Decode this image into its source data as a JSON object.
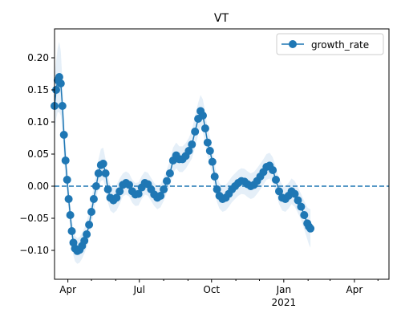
{
  "chart_data": {
    "type": "line",
    "title": "VT",
    "xlabel": "",
    "ylabel": "",
    "x_range": [
      "2020-03-15",
      "2021-05-15"
    ],
    "ylim": [
      -0.145,
      0.245
    ],
    "yticks": [
      -0.1,
      -0.05,
      0.0,
      0.05,
      0.1,
      0.15,
      0.2
    ],
    "ytick_labels": [
      "−0.10",
      "−0.05",
      "0.00",
      "0.05",
      "0.10",
      "0.15",
      "0.20"
    ],
    "xticks": [
      {
        "date": "2020-04-01",
        "label": "Apr",
        "sublabel": ""
      },
      {
        "date": "2020-07-01",
        "label": "Jul",
        "sublabel": ""
      },
      {
        "date": "2020-10-01",
        "label": "Oct",
        "sublabel": ""
      },
      {
        "date": "2021-01-01",
        "label": "Jan",
        "sublabel": "2021"
      },
      {
        "date": "2021-04-01",
        "label": "Apr",
        "sublabel": ""
      }
    ],
    "minor_xticks": [
      "2020-05-01",
      "2020-06-01",
      "2020-08-01",
      "2020-09-01",
      "2020-11-01",
      "2020-12-01",
      "2021-02-01",
      "2021-03-01",
      "2021-05-01"
    ],
    "reference_line": {
      "y": 0.0,
      "style": "dashed",
      "color": "#1f77b4"
    },
    "legend": {
      "placement": "top-right",
      "entries": [
        "growth_rate"
      ]
    },
    "grid": false,
    "series": [
      {
        "name": "growth_rate",
        "color": "#1f77b4",
        "band_color": "#e5eff8",
        "points": [
          [
            "2020-03-15",
            0.125,
            0.045
          ],
          [
            "2020-03-17",
            0.15,
            0.045
          ],
          [
            "2020-03-19",
            0.165,
            0.05
          ],
          [
            "2020-03-21",
            0.17,
            0.055
          ],
          [
            "2020-03-23",
            0.16,
            0.05
          ],
          [
            "2020-03-25",
            0.125,
            0.04
          ],
          [
            "2020-03-27",
            0.08,
            0.035
          ],
          [
            "2020-03-29",
            0.04,
            0.03
          ],
          [
            "2020-03-31",
            0.01,
            0.025
          ],
          [
            "2020-04-02",
            -0.02,
            0.022
          ],
          [
            "2020-04-04",
            -0.045,
            0.02
          ],
          [
            "2020-04-06",
            -0.07,
            0.02
          ],
          [
            "2020-04-08",
            -0.088,
            0.02
          ],
          [
            "2020-04-10",
            -0.097,
            0.02
          ],
          [
            "2020-04-13",
            -0.101,
            0.02
          ],
          [
            "2020-04-16",
            -0.099,
            0.02
          ],
          [
            "2020-04-19",
            -0.093,
            0.02
          ],
          [
            "2020-04-22",
            -0.085,
            0.02
          ],
          [
            "2020-04-25",
            -0.075,
            0.02
          ],
          [
            "2020-04-28",
            -0.06,
            0.02
          ],
          [
            "2020-05-01",
            -0.04,
            0.02
          ],
          [
            "2020-05-04",
            -0.02,
            0.02
          ],
          [
            "2020-05-07",
            0.0,
            0.02
          ],
          [
            "2020-05-10",
            0.02,
            0.022
          ],
          [
            "2020-05-13",
            0.033,
            0.025
          ],
          [
            "2020-05-16",
            0.035,
            0.025
          ],
          [
            "2020-05-19",
            0.02,
            0.022
          ],
          [
            "2020-05-22",
            -0.005,
            0.02
          ],
          [
            "2020-05-25",
            -0.018,
            0.02
          ],
          [
            "2020-05-29",
            -0.022,
            0.02
          ],
          [
            "2020-06-02",
            -0.018,
            0.02
          ],
          [
            "2020-06-06",
            -0.008,
            0.02
          ],
          [
            "2020-06-10",
            0.002,
            0.018
          ],
          [
            "2020-06-14",
            0.005,
            0.018
          ],
          [
            "2020-06-18",
            0.002,
            0.018
          ],
          [
            "2020-06-22",
            -0.008,
            0.018
          ],
          [
            "2020-06-26",
            -0.013,
            0.018
          ],
          [
            "2020-06-30",
            -0.012,
            0.018
          ],
          [
            "2020-07-04",
            -0.002,
            0.018
          ],
          [
            "2020-07-08",
            0.005,
            0.018
          ],
          [
            "2020-07-12",
            0.003,
            0.018
          ],
          [
            "2020-07-16",
            -0.005,
            0.018
          ],
          [
            "2020-07-20",
            -0.013,
            0.018
          ],
          [
            "2020-07-24",
            -0.018,
            0.018
          ],
          [
            "2020-07-28",
            -0.015,
            0.018
          ],
          [
            "2020-08-01",
            -0.005,
            0.018
          ],
          [
            "2020-08-05",
            0.008,
            0.018
          ],
          [
            "2020-08-09",
            0.02,
            0.02
          ],
          [
            "2020-08-13",
            0.04,
            0.02
          ],
          [
            "2020-08-17",
            0.048,
            0.02
          ],
          [
            "2020-08-21",
            0.042,
            0.02
          ],
          [
            "2020-08-25",
            0.042,
            0.02
          ],
          [
            "2020-08-29",
            0.047,
            0.02
          ],
          [
            "2020-09-02",
            0.055,
            0.02
          ],
          [
            "2020-09-06",
            0.065,
            0.022
          ],
          [
            "2020-09-10",
            0.085,
            0.025
          ],
          [
            "2020-09-14",
            0.105,
            0.025
          ],
          [
            "2020-09-17",
            0.117,
            0.025
          ],
          [
            "2020-09-20",
            0.11,
            0.025
          ],
          [
            "2020-09-23",
            0.09,
            0.025
          ],
          [
            "2020-09-26",
            0.068,
            0.022
          ],
          [
            "2020-09-29",
            0.055,
            0.022
          ],
          [
            "2020-10-02",
            0.038,
            0.02
          ],
          [
            "2020-10-05",
            0.015,
            0.02
          ],
          [
            "2020-10-08",
            -0.005,
            0.02
          ],
          [
            "2020-10-11",
            -0.015,
            0.02
          ],
          [
            "2020-10-15",
            -0.02,
            0.02
          ],
          [
            "2020-10-19",
            -0.018,
            0.02
          ],
          [
            "2020-10-23",
            -0.012,
            0.02
          ],
          [
            "2020-10-27",
            -0.005,
            0.02
          ],
          [
            "2020-10-31",
            0.0,
            0.02
          ],
          [
            "2020-11-04",
            0.005,
            0.02
          ],
          [
            "2020-11-08",
            0.008,
            0.02
          ],
          [
            "2020-11-12",
            0.007,
            0.02
          ],
          [
            "2020-11-16",
            0.003,
            0.02
          ],
          [
            "2020-11-20",
            0.0,
            0.02
          ],
          [
            "2020-11-24",
            0.002,
            0.02
          ],
          [
            "2020-11-28",
            0.008,
            0.02
          ],
          [
            "2020-12-02",
            0.015,
            0.02
          ],
          [
            "2020-12-06",
            0.022,
            0.02
          ],
          [
            "2020-12-10",
            0.03,
            0.02
          ],
          [
            "2020-12-14",
            0.032,
            0.02
          ],
          [
            "2020-12-18",
            0.025,
            0.02
          ],
          [
            "2020-12-22",
            0.01,
            0.02
          ],
          [
            "2020-12-26",
            -0.008,
            0.02
          ],
          [
            "2020-12-30",
            -0.018,
            0.02
          ],
          [
            "2021-01-03",
            -0.02,
            0.02
          ],
          [
            "2021-01-07",
            -0.015,
            0.02
          ],
          [
            "2021-01-11",
            -0.008,
            0.02
          ],
          [
            "2021-01-15",
            -0.012,
            0.02
          ],
          [
            "2021-01-19",
            -0.022,
            0.02
          ],
          [
            "2021-01-23",
            -0.032,
            0.02
          ],
          [
            "2021-01-27",
            -0.045,
            0.022
          ],
          [
            "2021-01-31",
            -0.058,
            0.025
          ],
          [
            "2021-02-02",
            -0.063,
            0.028
          ],
          [
            "2021-02-04",
            -0.066,
            0.03
          ]
        ]
      }
    ]
  }
}
